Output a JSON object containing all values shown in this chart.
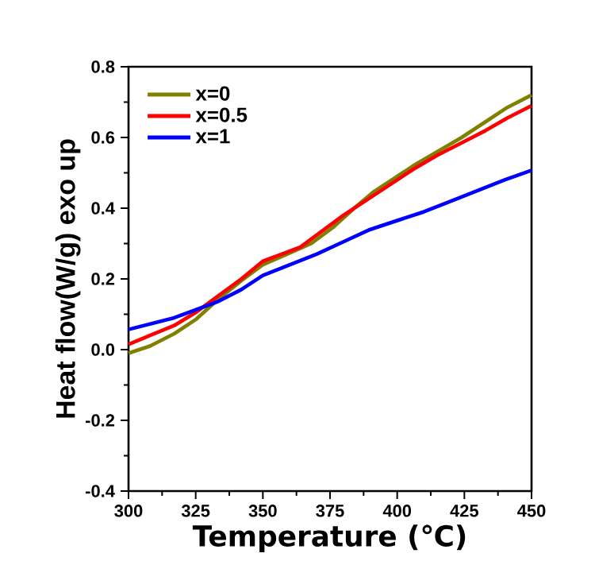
{
  "chart_data": {
    "type": "line",
    "xlabel": "Temperature (℃)",
    "ylabel": "Heat flow(W/g) exo up",
    "xlim": [
      300,
      450
    ],
    "xticks": [
      300,
      325,
      350,
      375,
      400,
      425,
      450
    ],
    "ylim": [
      -0.4,
      0.8
    ],
    "yticks": [
      {
        "value": -0.4,
        "label": "-0.4"
      },
      {
        "value": -0.2,
        "label": "-0.2"
      },
      {
        "value": 0,
        "label": "0.0"
      },
      {
        "value": 0.2,
        "label": "0.2"
      },
      {
        "value": 0.4,
        "label": "0.4"
      },
      {
        "value": 0.6,
        "label": "0.6"
      },
      {
        "value": 0.8,
        "label": "0.8"
      }
    ],
    "legend": "top left",
    "grid": false,
    "series": [
      {
        "name": "x=0",
        "color": "#808000",
        "x": [
          300,
          308,
          317,
          325,
          333,
          342,
          350,
          359,
          368,
          376,
          384,
          391,
          398,
          406,
          415,
          424,
          433,
          441,
          450
        ],
        "values": [
          -0.01,
          0.01,
          0.045,
          0.085,
          0.14,
          0.195,
          0.24,
          0.27,
          0.3,
          0.345,
          0.4,
          0.445,
          0.48,
          0.52,
          0.56,
          0.6,
          0.645,
          0.685,
          0.72
        ]
      },
      {
        "name": "x=0.5",
        "color": "#ff0000",
        "x": [
          300,
          308,
          317,
          325,
          333,
          342,
          350,
          357,
          364,
          372,
          380,
          389,
          398,
          406,
          415,
          424,
          433,
          441,
          450
        ],
        "values": [
          0.015,
          0.04,
          0.068,
          0.105,
          0.15,
          0.2,
          0.25,
          0.27,
          0.29,
          0.335,
          0.38,
          0.425,
          0.47,
          0.51,
          0.55,
          0.585,
          0.62,
          0.655,
          0.69
        ]
      },
      {
        "name": "x=1",
        "color": "#0000ff",
        "x": [
          300,
          317,
          333,
          342,
          350,
          360,
          370,
          380,
          390,
          400,
          410,
          420,
          430,
          440,
          450
        ],
        "values": [
          0.057,
          0.09,
          0.135,
          0.17,
          0.21,
          0.24,
          0.27,
          0.305,
          0.34,
          0.365,
          0.39,
          0.42,
          0.45,
          0.48,
          0.507
        ]
      }
    ]
  }
}
